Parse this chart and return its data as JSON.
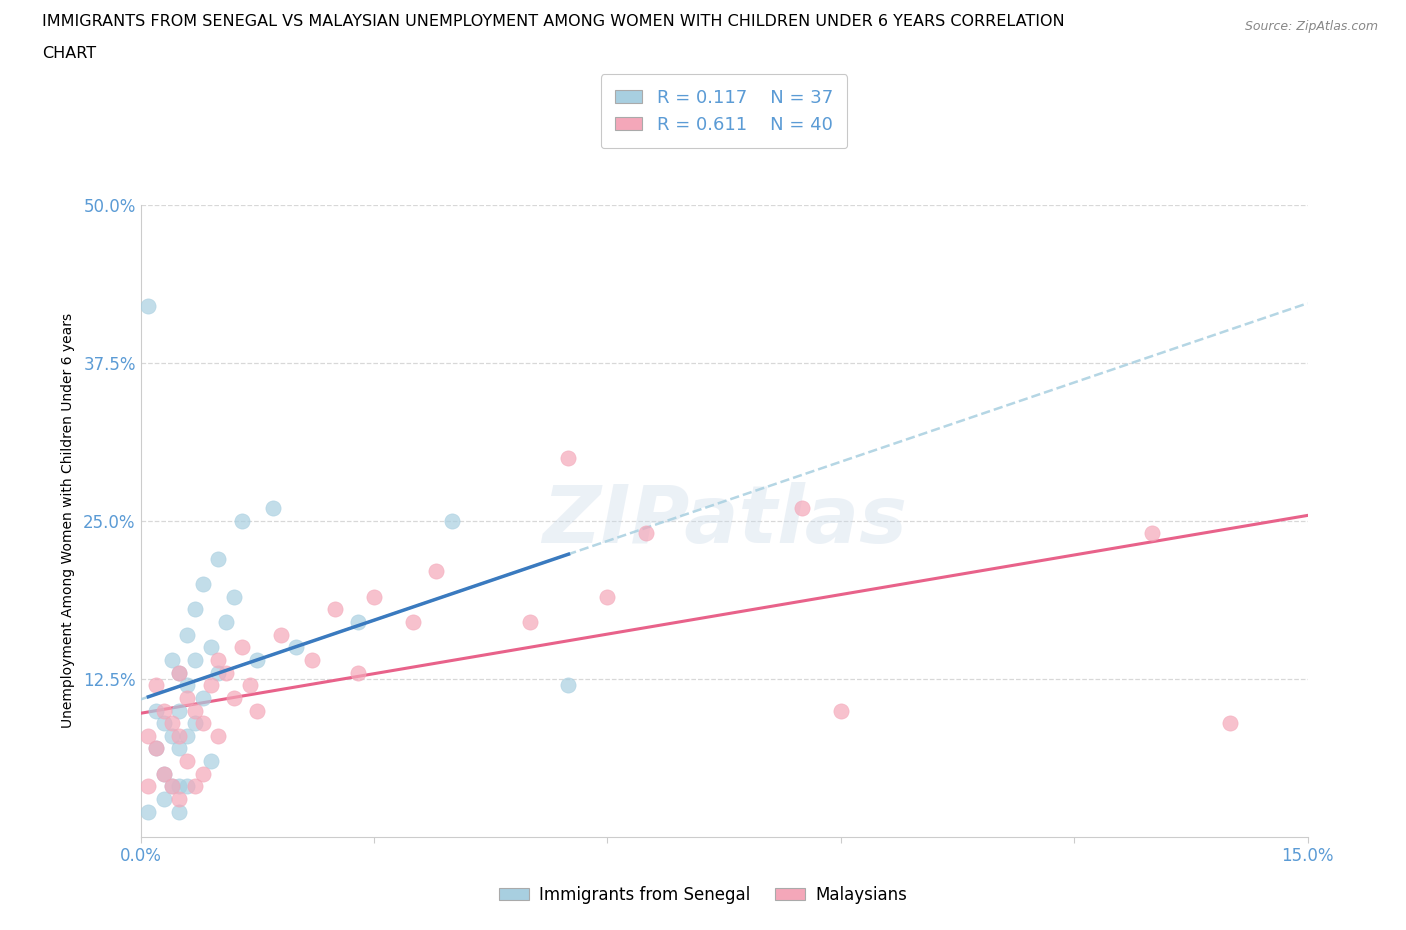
{
  "title_line1": "IMMIGRANTS FROM SENEGAL VS MALAYSIAN UNEMPLOYMENT AMONG WOMEN WITH CHILDREN UNDER 6 YEARS CORRELATION",
  "title_line2": "CHART",
  "source": "Source: ZipAtlas.com",
  "ylabel": "Unemployment Among Women with Children Under 6 years",
  "xlim": [
    0.0,
    0.15
  ],
  "ylim": [
    0.0,
    0.5
  ],
  "ytick_vals": [
    0.0,
    0.125,
    0.25,
    0.375,
    0.5
  ],
  "ytick_labels": [
    "",
    "12.5%",
    "25.0%",
    "37.5%",
    "50.0%"
  ],
  "xtick_vals": [
    0.0,
    0.03,
    0.06,
    0.09,
    0.12,
    0.15
  ],
  "xtick_labels": [
    "0.0%",
    "",
    "",
    "",
    "",
    "15.0%"
  ],
  "r_senegal": 0.117,
  "n_senegal": 37,
  "r_malaysian": 0.611,
  "n_malaysian": 40,
  "color_senegal": "#a8cfe0",
  "color_malaysian": "#f4a7b9",
  "line_color_senegal_solid": "#3a7abf",
  "line_color_senegal_dash": "#a8cfe0",
  "line_color_malaysian": "#e8628a",
  "grid_color": "#d8d8d8",
  "tick_label_color": "#5b9bd5",
  "senegal_x": [
    0.001,
    0.002,
    0.002,
    0.003,
    0.003,
    0.003,
    0.004,
    0.004,
    0.004,
    0.005,
    0.005,
    0.005,
    0.005,
    0.005,
    0.006,
    0.006,
    0.006,
    0.006,
    0.007,
    0.007,
    0.007,
    0.008,
    0.008,
    0.009,
    0.009,
    0.01,
    0.01,
    0.011,
    0.012,
    0.013,
    0.015,
    0.017,
    0.02,
    0.028,
    0.04,
    0.055,
    0.001
  ],
  "senegal_y": [
    0.42,
    0.1,
    0.07,
    0.09,
    0.05,
    0.03,
    0.14,
    0.08,
    0.04,
    0.13,
    0.1,
    0.07,
    0.04,
    0.02,
    0.16,
    0.12,
    0.08,
    0.04,
    0.18,
    0.14,
    0.09,
    0.2,
    0.11,
    0.15,
    0.06,
    0.22,
    0.13,
    0.17,
    0.19,
    0.25,
    0.14,
    0.26,
    0.15,
    0.17,
    0.25,
    0.12,
    0.02
  ],
  "malaysian_x": [
    0.001,
    0.001,
    0.002,
    0.002,
    0.003,
    0.003,
    0.004,
    0.004,
    0.005,
    0.005,
    0.005,
    0.006,
    0.006,
    0.007,
    0.007,
    0.008,
    0.008,
    0.009,
    0.01,
    0.01,
    0.011,
    0.012,
    0.013,
    0.014,
    0.015,
    0.018,
    0.022,
    0.025,
    0.028,
    0.03,
    0.035,
    0.038,
    0.05,
    0.055,
    0.06,
    0.065,
    0.085,
    0.09,
    0.13,
    0.14
  ],
  "malaysian_y": [
    0.08,
    0.04,
    0.12,
    0.07,
    0.1,
    0.05,
    0.09,
    0.04,
    0.13,
    0.08,
    0.03,
    0.11,
    0.06,
    0.1,
    0.04,
    0.09,
    0.05,
    0.12,
    0.14,
    0.08,
    0.13,
    0.11,
    0.15,
    0.12,
    0.1,
    0.16,
    0.14,
    0.18,
    0.13,
    0.19,
    0.17,
    0.21,
    0.17,
    0.3,
    0.19,
    0.24,
    0.26,
    0.1,
    0.24,
    0.09
  ]
}
